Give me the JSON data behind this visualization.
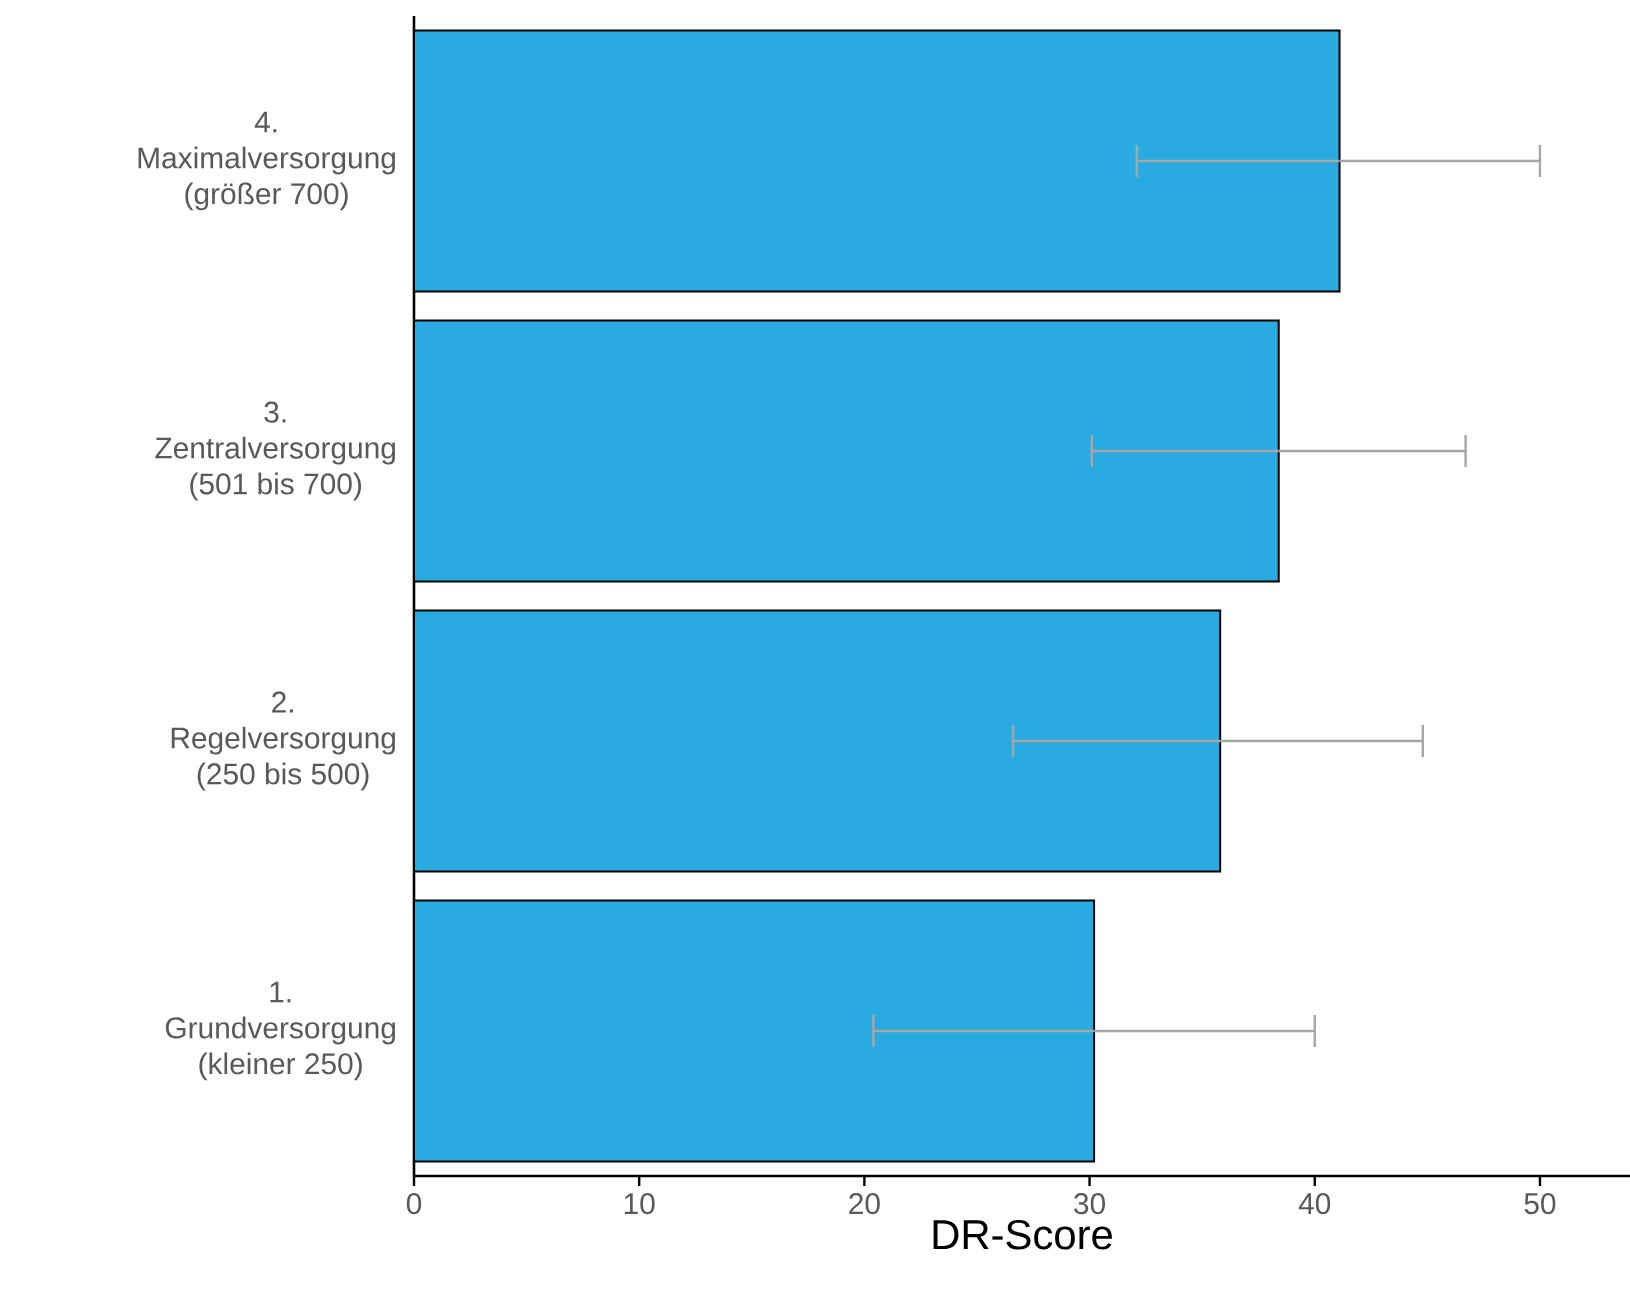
{
  "chart_data": {
    "type": "bar",
    "orientation": "horizontal",
    "xlabel": "DR-Score",
    "categories": [
      "4.\nMaximalversorgung\n(größer 700)",
      "3.\nZentralversorgung\n(501 bis 700)",
      "2.\nRegelversorgung\n(250 bis 500)",
      "1.\nGrundversorgung\n(kleiner 250)"
    ],
    "values": [
      41.1,
      38.4,
      35.8,
      30.2
    ],
    "errors": [
      [
        32.1,
        50.0
      ],
      [
        30.1,
        46.7
      ],
      [
        26.6,
        44.8
      ],
      [
        20.4,
        40.0
      ]
    ],
    "color": "#29abe2",
    "xlim": [
      0,
      54
    ],
    "xticks": [
      0,
      10,
      20,
      30,
      40,
      50
    ]
  }
}
